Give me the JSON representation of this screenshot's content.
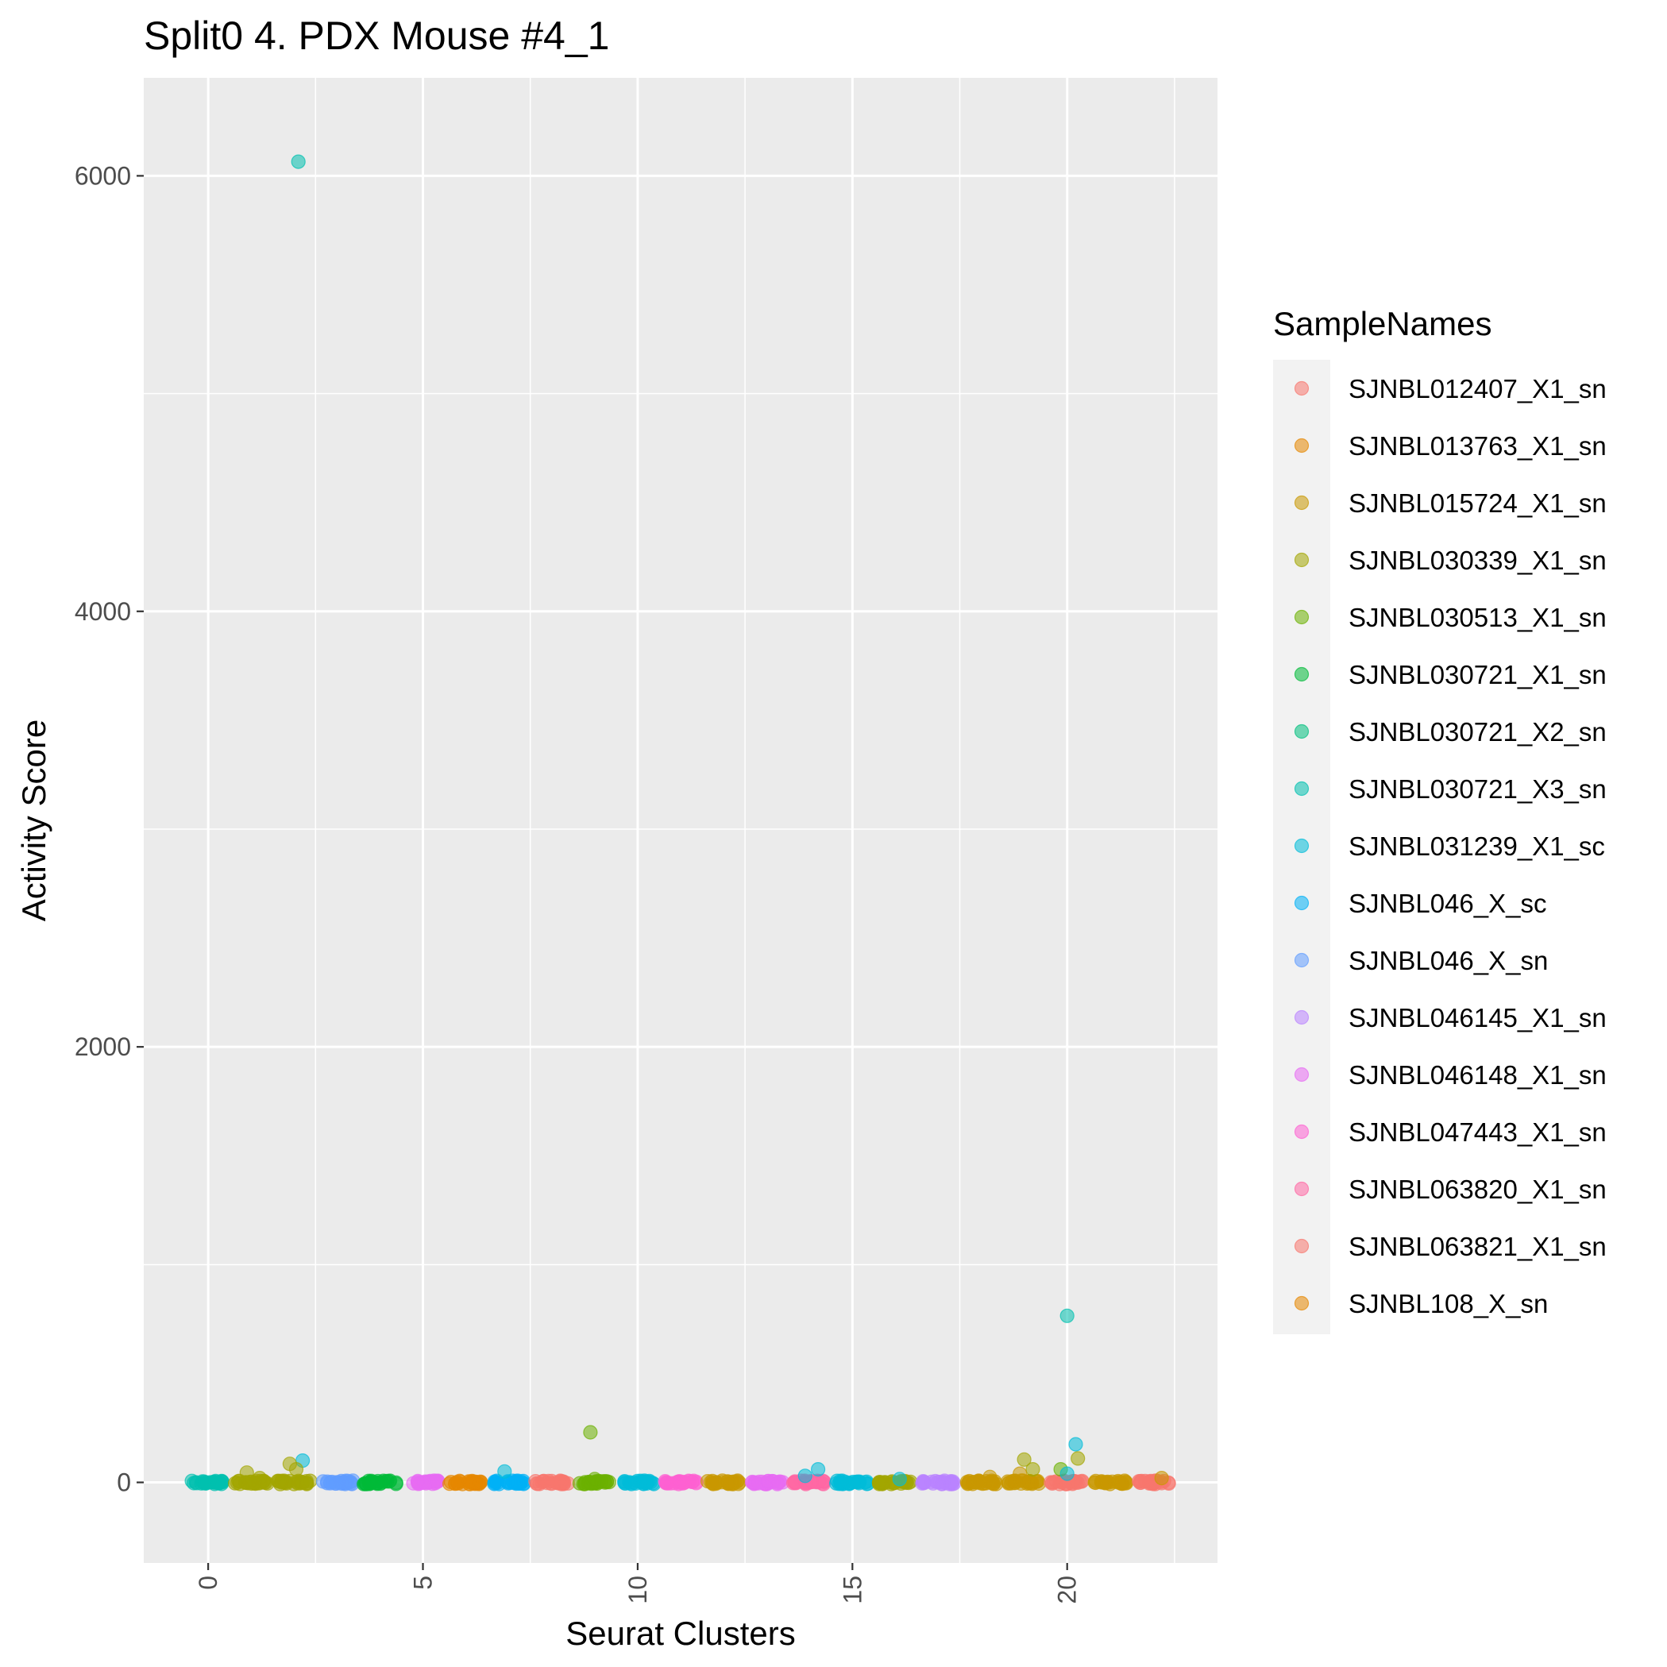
{
  "chart_data": {
    "type": "scatter",
    "title": "Split0 4. PDX Mouse #4_1",
    "xlabel": "Seurat Clusters",
    "ylabel": "Activity Score",
    "xlim": [
      -1.5,
      23.5
    ],
    "ylim": [
      -370,
      6450
    ],
    "x_ticks": [
      0,
      5,
      10,
      15,
      20
    ],
    "y_ticks": [
      0,
      2000,
      4000,
      6000
    ],
    "grid": true,
    "legend_position": "right",
    "legend_title": "SampleNames",
    "legend": [
      {
        "name": "SJNBL012407_X1_sn",
        "color": "#F8766D"
      },
      {
        "name": "SJNBL013763_X1_sn",
        "color": "#E58700"
      },
      {
        "name": "SJNBL015724_X1_sn",
        "color": "#C99800"
      },
      {
        "name": "SJNBL030339_X1_sn",
        "color": "#A3A500"
      },
      {
        "name": "SJNBL030513_X1_sn",
        "color": "#6BB100"
      },
      {
        "name": "SJNBL030721_X1_sn",
        "color": "#00BA38"
      },
      {
        "name": "SJNBL030721_X2_sn",
        "color": "#00BF7D"
      },
      {
        "name": "SJNBL030721_X3_sn",
        "color": "#00C0AF"
      },
      {
        "name": "SJNBL031239_X1_sc",
        "color": "#00BCD8"
      },
      {
        "name": "SJNBL046_X_sc",
        "color": "#00B0F6"
      },
      {
        "name": "SJNBL046_X_sn",
        "color": "#619CFF"
      },
      {
        "name": "SJNBL046145_X1_sn",
        "color": "#B983FF"
      },
      {
        "name": "SJNBL046148_X1_sn",
        "color": "#E76BF3"
      },
      {
        "name": "SJNBL047443_X1_sn",
        "color": "#FD61D1"
      },
      {
        "name": "SJNBL063820_X1_sn",
        "color": "#FF67A4"
      },
      {
        "name": "SJNBL063821_X1_sn",
        "color": "#F8766D"
      },
      {
        "name": "SJNBL108_X_sn",
        "color": "#E58700"
      }
    ],
    "cluster_colors": [
      "#00C0AF",
      "#A3A500",
      "#A3A500",
      "#619CFF",
      "#00BA38",
      "#E76BF3",
      "#E58700",
      "#00B0F6",
      "#F8766D",
      "#6BB100",
      "#00BCD8",
      "#FD61D1",
      "#C99800",
      "#E76BF3",
      "#FF67A4",
      "#00BCD8",
      "#A3A500",
      "#B983FF",
      "#C99800",
      "#C99800",
      "#F8766D",
      "#C99800",
      "#F8766D"
    ],
    "points": [
      {
        "x": 2.1,
        "y": 6065,
        "color": "#00C0AF"
      },
      {
        "x": 20.0,
        "y": 765,
        "color": "#00C0AF"
      },
      {
        "x": 8.9,
        "y": 230,
        "color": "#6BB100"
      },
      {
        "x": 20.2,
        "y": 175,
        "color": "#00BCD8"
      },
      {
        "x": 2.2,
        "y": 100,
        "color": "#00BCD8"
      },
      {
        "x": 1.9,
        "y": 85,
        "color": "#A3A500"
      },
      {
        "x": 2.05,
        "y": 60,
        "color": "#A3A500"
      },
      {
        "x": 19.0,
        "y": 105,
        "color": "#A3A500"
      },
      {
        "x": 19.2,
        "y": 60,
        "color": "#A3A500"
      },
      {
        "x": 20.25,
        "y": 110,
        "color": "#A3A500"
      },
      {
        "x": 19.85,
        "y": 60,
        "color": "#6BB100"
      },
      {
        "x": 14.2,
        "y": 60,
        "color": "#00BCD8"
      },
      {
        "x": 6.9,
        "y": 50,
        "color": "#00BCD8"
      },
      {
        "x": 13.9,
        "y": 30,
        "color": "#00BCD8"
      },
      {
        "x": 0.9,
        "y": 45,
        "color": "#A3A500"
      },
      {
        "x": 1.2,
        "y": 20,
        "color": "#A3A500"
      },
      {
        "x": 18.2,
        "y": 25,
        "color": "#C99800"
      },
      {
        "x": 18.9,
        "y": 40,
        "color": "#C99800"
      },
      {
        "x": 22.2,
        "y": 20,
        "color": "#C99800"
      },
      {
        "x": 20.0,
        "y": 40,
        "color": "#00BCD8"
      },
      {
        "x": 9.0,
        "y": 15,
        "color": "#6BB100"
      },
      {
        "x": 16.1,
        "y": 15,
        "color": "#00BCD8"
      }
    ]
  }
}
